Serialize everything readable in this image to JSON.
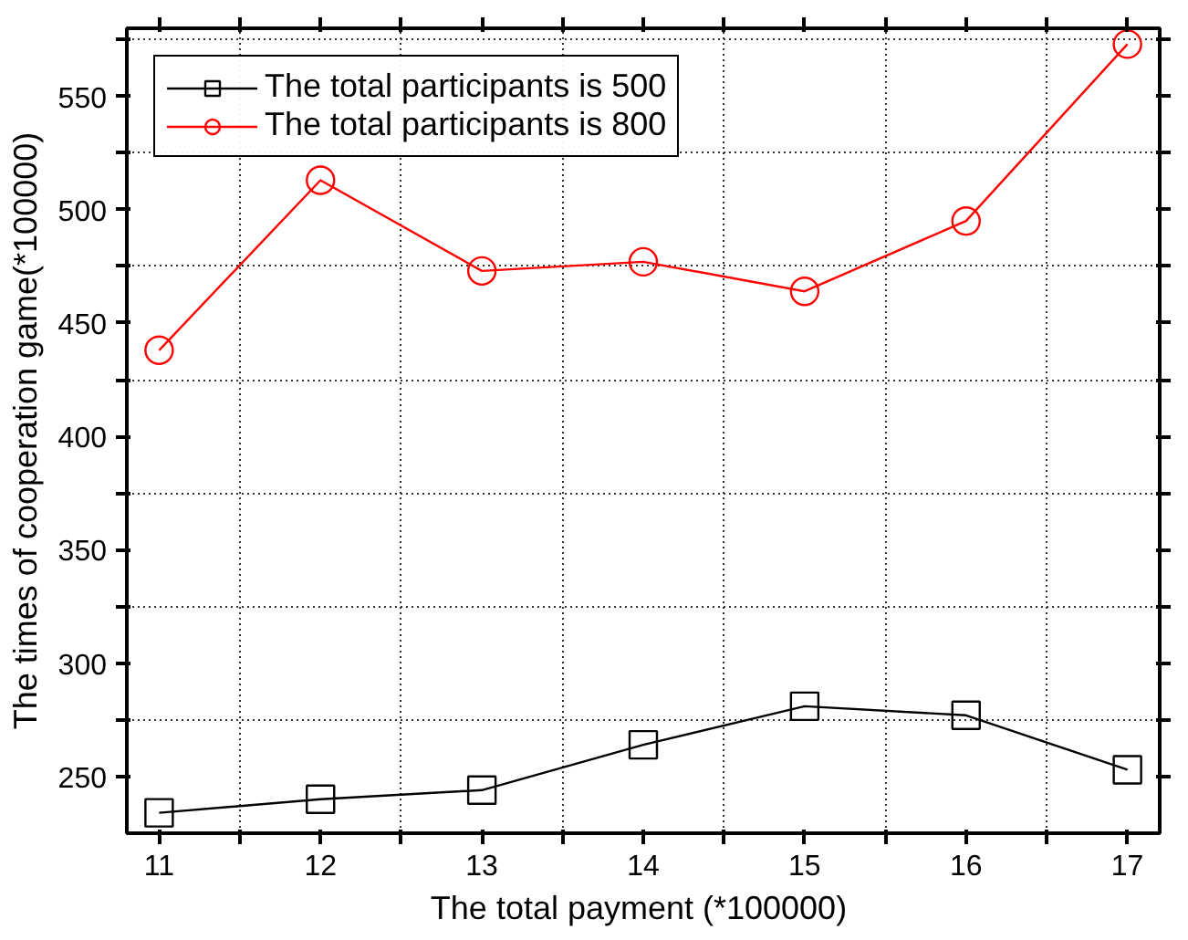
{
  "chart_data": {
    "type": "line",
    "xlabel": "The total payment  (*100000)",
    "ylabel": "The times of cooperation game(*100000)",
    "x": [
      11,
      12,
      13,
      14,
      15,
      16,
      17
    ],
    "series": [
      {
        "name": "The total participants is 500",
        "color": "#000000",
        "marker": "square",
        "values": [
          234,
          240,
          244,
          264,
          281,
          277,
          253
        ]
      },
      {
        "name": "The total participants is 800",
        "color": "#ff0000",
        "marker": "circle",
        "values": [
          438,
          513,
          473,
          477,
          464,
          495,
          573
        ]
      }
    ],
    "xlim": [
      10.8,
      17.2
    ],
    "xticks": [
      11,
      {
        "value": 11.5,
        "label": null
      },
      12,
      {
        "value": 12.5,
        "label": null
      },
      13,
      {
        "value": 13.5,
        "label": null
      },
      14,
      {
        "value": 14.5,
        "label": null
      },
      15,
      {
        "value": 15.5,
        "label": null
      },
      16,
      {
        "value": 16.5,
        "label": null
      },
      17
    ],
    "ylim": [
      225,
      580
    ],
    "yticks": [
      250,
      {
        "value": 275,
        "label": null
      },
      300,
      {
        "value": 325,
        "label": null
      },
      350,
      {
        "value": 375,
        "label": null
      },
      400,
      {
        "value": 425,
        "label": null
      },
      450,
      {
        "value": 475,
        "label": null
      },
      500,
      {
        "value": 525,
        "label": null
      },
      550,
      {
        "value": 575,
        "label": null
      }
    ],
    "grid": true,
    "legend": "top left",
    "line_style": "solid"
  }
}
